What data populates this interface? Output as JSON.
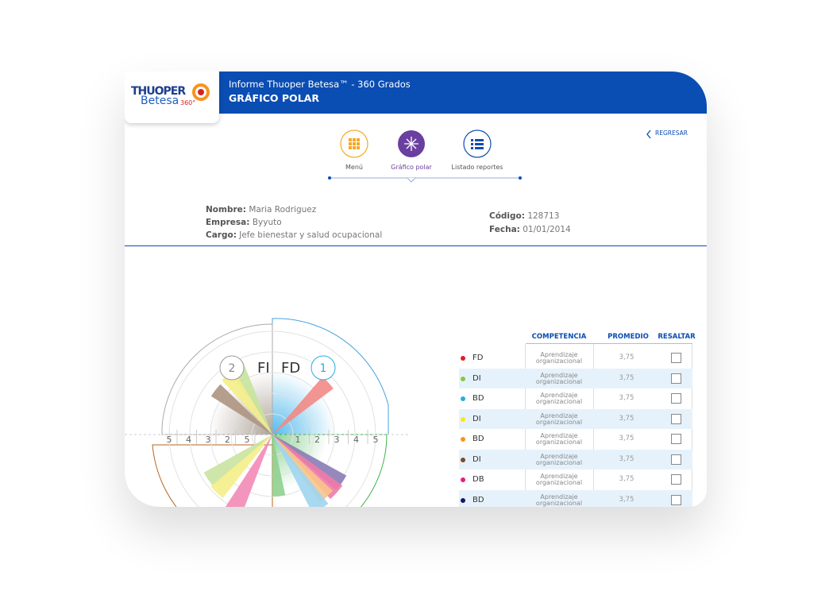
{
  "logo": {
    "name_top": "THUOPER",
    "name_bottom": "Betesa",
    "suffix": "360°"
  },
  "header": {
    "subtitle": "Informe Thuoper Betesa™ - 360 Grados",
    "title": "GRÁFICO POLAR"
  },
  "nav": {
    "items": [
      "Menú",
      "Gráfico polar",
      "Listado reportes"
    ],
    "back": "REGRESAR"
  },
  "info": {
    "left": [
      {
        "label": "Nombre:",
        "value": "Maria Rodriguez"
      },
      {
        "label": "Empresa:",
        "value": "Byyuto"
      },
      {
        "label": "Cargo:",
        "value": "Jefe bienestar y salud ocupacional"
      }
    ],
    "right": [
      {
        "label": "Código:",
        "value": "128713"
      },
      {
        "label": "Fecha:",
        "value": "01/01/2014"
      }
    ]
  },
  "polar": {
    "left_number": "2",
    "left_label": "FI",
    "right_label": "FD",
    "right_number": "1",
    "axis_left": [
      "5",
      "4",
      "3",
      "2",
      "5"
    ],
    "axis_right": [
      "1",
      "2",
      "3",
      "4",
      "5"
    ],
    "wedges": [
      {
        "angle": 43,
        "value": 3.7,
        "color": "#f28a86"
      },
      {
        "angle": 118,
        "value": 3.8,
        "color": "#c8e39c"
      },
      {
        "angle": 127,
        "value": 3.6,
        "color": "#f5ee8a"
      },
      {
        "angle": 142,
        "value": 3.5,
        "color": "#ad9580"
      },
      {
        "angle": -35,
        "value": 4.1,
        "color": "#8a7bb5"
      },
      {
        "angle": -42,
        "value": 4.2,
        "color": "#f07ba8"
      },
      {
        "angle": -49,
        "value": 4.0,
        "color": "#f9c48a"
      },
      {
        "angle": -57,
        "value": 4.3,
        "color": "#9fd5f0"
      },
      {
        "angle": -84,
        "value": 3.0,
        "color": "#8fd08f"
      },
      {
        "angle": 215,
        "value": 3.8,
        "color": "#c9e3a0"
      },
      {
        "angle": 226,
        "value": 3.9,
        "color": "#f5ee8a"
      },
      {
        "angle": 243,
        "value": 4.2,
        "color": "#f28ab5"
      }
    ]
  },
  "table": {
    "headers": [
      "COMPETENCIA",
      "PROMEDIO",
      "RESALTAR"
    ],
    "rows": [
      {
        "color": "#e41b23",
        "code": "FD",
        "competencia": "Aprendizaje organizacional",
        "promedio": "3,75"
      },
      {
        "color": "#8dc63f",
        "code": "DI",
        "competencia": "Aprendizaje organizacional",
        "promedio": "3,75"
      },
      {
        "color": "#29abe2",
        "code": "BD",
        "competencia": "Aprendizaje organizacional",
        "promedio": "3,75"
      },
      {
        "color": "#f7e51e",
        "code": "DI",
        "competencia": "Aprendizaje organizacional",
        "promedio": "3,75"
      },
      {
        "color": "#f7941d",
        "code": "BD",
        "competencia": "Aprendizaje organizacional",
        "promedio": "3,75"
      },
      {
        "color": "#7b4b2a",
        "code": "DI",
        "competencia": "Aprendizaje organizacional",
        "promedio": "3,75"
      },
      {
        "color": "#ec1a7b",
        "code": "DB",
        "competencia": "Aprendizaje organizacional",
        "promedio": "3,75"
      },
      {
        "color": "#1b1464",
        "code": "BD",
        "competencia": "Aprendizaje organizacional",
        "promedio": "3,75"
      }
    ]
  }
}
